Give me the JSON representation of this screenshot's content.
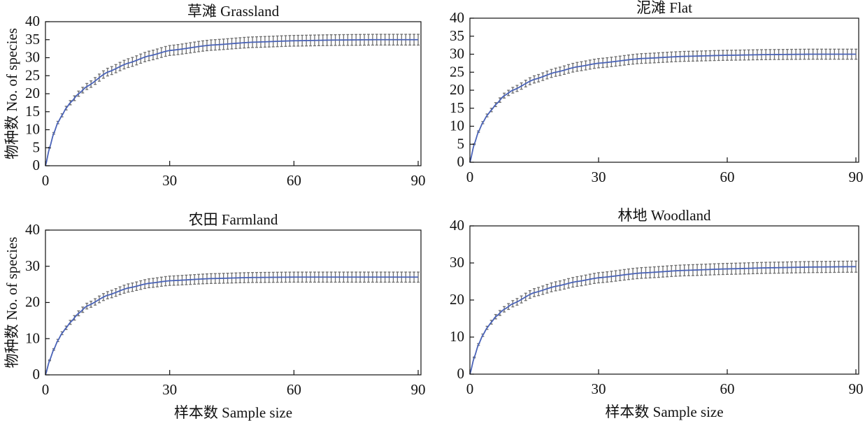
{
  "chart_data": [
    {
      "type": "line",
      "title": "草滩 Grassland",
      "xlabel": "",
      "ylabel": "物种数 No. of species",
      "xlim": [
        0,
        90
      ],
      "ylim": [
        0,
        40
      ],
      "xticks": [
        0,
        30,
        60,
        90
      ],
      "yticks": [
        0,
        5,
        10,
        15,
        20,
        25,
        30,
        35,
        40
      ],
      "x": [
        0,
        1,
        2,
        3,
        4,
        5,
        6,
        8,
        10,
        15,
        20,
        25,
        30,
        40,
        50,
        60,
        70,
        80,
        90
      ],
      "y": [
        0,
        5,
        9,
        12,
        14,
        16,
        17.5,
        20,
        22,
        26,
        28.5,
        30.5,
        32,
        33.5,
        34.3,
        34.7,
        34.9,
        35,
        35
      ],
      "error_max": 1.5,
      "grid": false
    },
    {
      "type": "line",
      "title": "泥滩 Flat",
      "xlabel": "",
      "ylabel": "",
      "xlim": [
        0,
        90
      ],
      "ylim": [
        0,
        40
      ],
      "xticks": [
        0,
        30,
        60,
        90
      ],
      "yticks": [
        0,
        5,
        10,
        15,
        20,
        25,
        30,
        35,
        40
      ],
      "x": [
        0,
        1,
        2,
        3,
        4,
        5,
        6,
        8,
        10,
        15,
        20,
        25,
        30,
        40,
        50,
        60,
        70,
        80,
        90
      ],
      "y": [
        0,
        5,
        8.5,
        11,
        13,
        14.5,
        16,
        18.5,
        20,
        23,
        25,
        26.5,
        27.5,
        28.8,
        29.4,
        29.7,
        29.9,
        30,
        30
      ],
      "error_max": 1.4,
      "grid": false
    },
    {
      "type": "line",
      "title": "农田 Farmland",
      "xlabel": "样本数 Sample size",
      "ylabel": "物种数 No. of species",
      "xlim": [
        0,
        90
      ],
      "ylim": [
        0,
        40
      ],
      "xticks": [
        0,
        30,
        60,
        90
      ],
      "yticks": [
        0,
        10,
        20,
        30,
        40
      ],
      "x": [
        0,
        1,
        2,
        3,
        4,
        5,
        6,
        8,
        10,
        15,
        20,
        25,
        30,
        40,
        50,
        60,
        70,
        80,
        90
      ],
      "y": [
        0,
        4,
        7,
        9.5,
        11.5,
        13,
        14.5,
        17,
        19,
        22,
        24,
        25.3,
        26,
        26.6,
        26.9,
        27,
        27,
        27,
        27
      ],
      "error_max": 1.4,
      "grid": false
    },
    {
      "type": "line",
      "title": "林地 Woodland",
      "xlabel": "样本数 Sample size",
      "ylabel": "",
      "xlim": [
        0,
        90
      ],
      "ylim": [
        0,
        40
      ],
      "xticks": [
        0,
        30,
        60,
        90
      ],
      "yticks": [
        0,
        10,
        20,
        30,
        40
      ],
      "x": [
        0,
        1,
        2,
        3,
        4,
        5,
        6,
        8,
        10,
        15,
        20,
        25,
        30,
        40,
        50,
        60,
        70,
        80,
        90
      ],
      "y": [
        0,
        4.5,
        8,
        10.5,
        12.5,
        14,
        15.5,
        17.5,
        19,
        22,
        23.7,
        25,
        26,
        27.3,
        28,
        28.4,
        28.7,
        28.9,
        29
      ],
      "error_max": 1.5,
      "grid": false
    }
  ],
  "colors": {
    "curve": "#4a63b8",
    "error_bar": "#6e6e6e",
    "axis": "#111111"
  }
}
